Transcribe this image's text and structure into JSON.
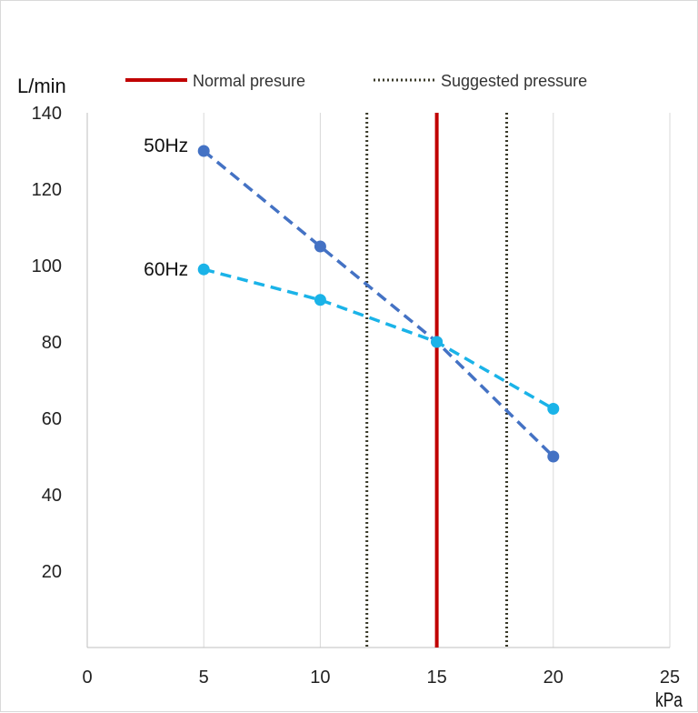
{
  "chart_data": {
    "type": "line",
    "ylabel": "L/min",
    "xlabel": "kPa",
    "xlim": [
      0,
      25
    ],
    "ylim": [
      0,
      140
    ],
    "x_ticks": [
      0,
      5,
      10,
      15,
      20,
      25
    ],
    "y_ticks": [
      20,
      40,
      60,
      80,
      100,
      120,
      140
    ],
    "grid": "vertical",
    "legend_position": "top",
    "series": [
      {
        "name": "50Hz",
        "color": "#4472c4",
        "style": "dashed",
        "x": [
          5,
          10,
          15,
          20
        ],
        "y": [
          130,
          105,
          80,
          50
        ]
      },
      {
        "name": "60Hz",
        "color": "#1ab3e8",
        "style": "dashed",
        "x": [
          5,
          10,
          15,
          20
        ],
        "y": [
          99,
          91,
          80,
          62.5
        ]
      }
    ],
    "reference_lines": [
      {
        "name": "Normal presure",
        "x": 15,
        "color": "#c00000",
        "style": "solid",
        "in_legend": true
      },
      {
        "name": "Suggested pressure",
        "x": 12,
        "color": "#3a3a2a",
        "style": "dotted",
        "in_legend": true
      },
      {
        "name": "Suggested pressure",
        "x": 18,
        "color": "#3a3a2a",
        "style": "dotted",
        "in_legend": false
      }
    ]
  }
}
